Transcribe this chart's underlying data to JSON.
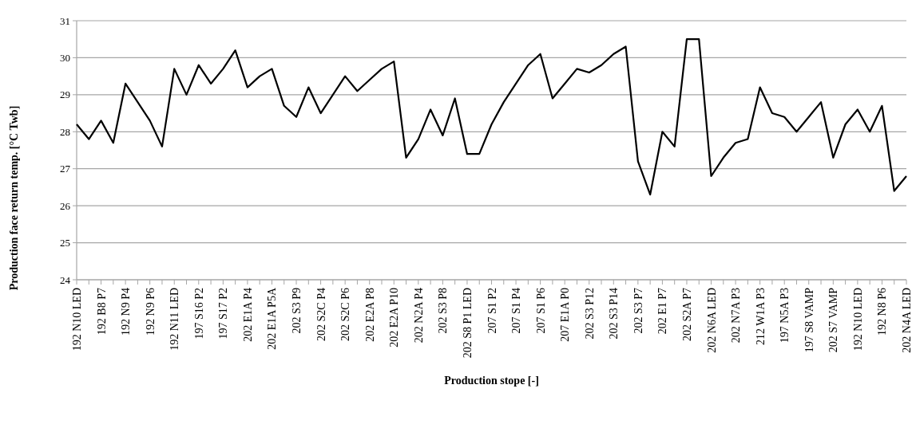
{
  "chart_data": {
    "type": "line",
    "xlabel": "Production stope [-]",
    "ylabel": "Production face return temp. [°C Twb]",
    "categories": [
      "192 N10 LED",
      null,
      "192 B8 P7",
      null,
      "192 N9 P4",
      null,
      "192 N9 P6",
      null,
      "192 N11 LED",
      null,
      "197 S16 P2",
      null,
      "197 S17 P2",
      null,
      "202 E1A P4",
      null,
      "202 E1A P5A",
      null,
      "202 S3 P9",
      null,
      "202 S2C P4",
      null,
      "202 S2C P6",
      null,
      "202 E2A P8",
      null,
      "202 E2A P10",
      null,
      "202 N2A P4",
      null,
      "202 S3 P8",
      null,
      "202 S8 P1 LED",
      null,
      "207 S1 P2",
      null,
      "207 S1 P4",
      null,
      "207 S1 P6",
      null,
      "207 E1A P0",
      null,
      "202 S3 P12",
      null,
      "202 S3 P14",
      null,
      "202 S3 P7",
      null,
      "202 E1 P7",
      null,
      "202 S2A P7",
      null,
      "202 N6A LED",
      null,
      "202 N7A P3",
      null,
      "212 W1A P3",
      null,
      "197 N5A P3",
      null,
      "197 S8 VAMP",
      null,
      "202 S7 VAMP",
      null,
      "192 N10 LED",
      null,
      "192 N8 P6",
      null,
      "202 N4A LED"
    ],
    "series": [
      {
        "color": "#000000",
        "values": [
          28.2,
          27.8,
          28.3,
          27.7,
          29.3,
          28.8,
          28.3,
          27.6,
          29.7,
          29.0,
          29.8,
          29.3,
          29.7,
          30.2,
          29.2,
          29.5,
          29.7,
          28.7,
          28.4,
          29.2,
          28.5,
          29.0,
          29.5,
          29.1,
          29.4,
          29.7,
          29.9,
          27.3,
          27.8,
          28.6,
          27.9,
          28.9,
          27.4,
          27.4,
          28.2,
          28.8,
          29.3,
          29.8,
          30.1,
          28.9,
          29.3,
          29.7,
          29.6,
          29.8,
          30.1,
          30.3,
          27.2,
          26.3,
          28.0,
          27.6,
          30.5,
          30.5,
          26.8,
          27.3,
          27.7,
          27.8,
          29.2,
          28.5,
          28.4,
          28.0,
          28.4,
          28.8,
          27.3,
          28.2,
          28.6,
          28.0,
          28.7,
          26.4,
          26.8
        ]
      }
    ],
    "ylim": [
      24,
      31
    ],
    "yticks": [
      24,
      25,
      26,
      27,
      28,
      29,
      30,
      31
    ],
    "grid": "y",
    "marker": "none",
    "line_style": "solid"
  }
}
